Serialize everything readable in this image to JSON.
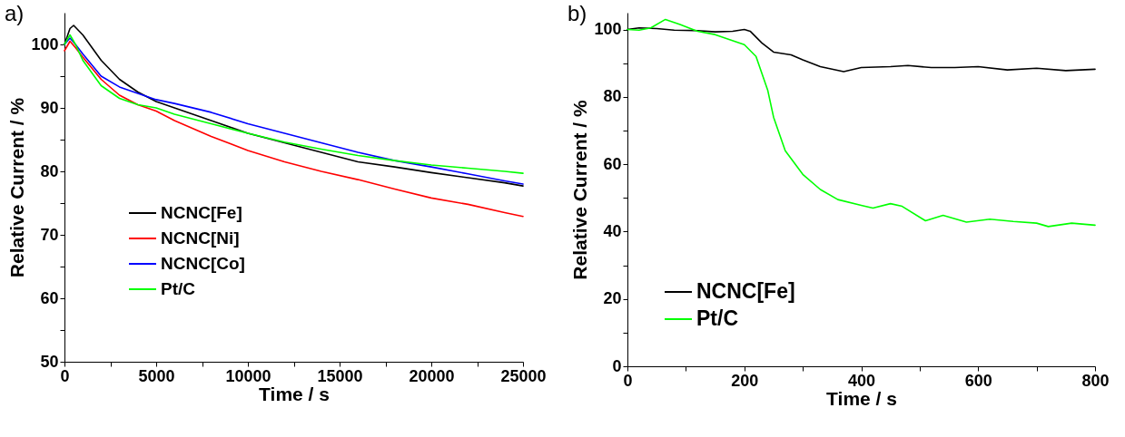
{
  "chart_data": [
    {
      "type": "line",
      "title": "a)",
      "xlabel": "Time / s",
      "ylabel": "Relative Current / %",
      "xlim": [
        0,
        25000
      ],
      "ylim": [
        50,
        105
      ],
      "xticks": [
        0,
        {
          "value": 2500,
          "label": null
        },
        5000,
        {
          "value": 7500,
          "label": null
        },
        10000,
        {
          "value": 12500,
          "label": null
        },
        15000,
        {
          "value": 17500,
          "label": null
        },
        20000,
        {
          "value": 22500,
          "label": null
        },
        25000
      ],
      "yticks": [
        50,
        {
          "value": 55,
          "label": null
        },
        60,
        {
          "value": 65,
          "label": null
        },
        70,
        {
          "value": 75,
          "label": null
        },
        80,
        {
          "value": 85,
          "label": null
        },
        90,
        {
          "value": 95,
          "label": null
        },
        100
      ],
      "legend": "bottom left",
      "grid": false,
      "line_style": "solid",
      "series": [
        {
          "name": "NCNC[Fe]",
          "color": "#000000",
          "x": [
            0,
            300,
            500,
            1000,
            2000,
            3000,
            4000,
            5000,
            6000,
            7000,
            8000,
            10000,
            12000,
            14000,
            16000,
            18000,
            20000,
            22000,
            24000,
            25000
          ],
          "values": [
            100,
            102.5,
            103,
            101.5,
            97.5,
            94.5,
            92.5,
            91,
            90,
            89,
            88,
            86,
            84.5,
            83,
            81.5,
            80.7,
            79.8,
            79,
            78.2,
            77.7
          ]
        },
        {
          "name": "NCNC[Ni]",
          "color": "#ff0000",
          "x": [
            0,
            300,
            600,
            1000,
            2000,
            3000,
            4000,
            5000,
            6000,
            8000,
            10000,
            12000,
            14000,
            16000,
            18000,
            20000,
            22000,
            24000,
            25000
          ],
          "values": [
            99,
            100.5,
            99.5,
            98,
            94.5,
            92,
            90.5,
            89.5,
            88,
            85.5,
            83.3,
            81.5,
            80,
            78.7,
            77.2,
            75.8,
            74.8,
            73.5,
            72.9
          ]
        },
        {
          "name": "NCNC[Co]",
          "color": "#0000ff",
          "x": [
            0,
            300,
            600,
            1000,
            2000,
            3000,
            4000,
            5000,
            6000,
            8000,
            10000,
            12000,
            14000,
            16000,
            18000,
            20000,
            22000,
            24000,
            25000
          ],
          "values": [
            100,
            101,
            100,
            98.5,
            95,
            93.3,
            92.3,
            91.3,
            90.7,
            89.3,
            87.5,
            86,
            84.5,
            83,
            81.7,
            80.7,
            79.6,
            78.5,
            78
          ]
        },
        {
          "name": "Pt/C",
          "color": "#00ff00",
          "x": [
            0,
            300,
            600,
            1000,
            2000,
            3000,
            4000,
            5000,
            6000,
            8000,
            10000,
            12000,
            14000,
            16000,
            18000,
            20000,
            22000,
            24000,
            25000
          ],
          "values": [
            100,
            101.5,
            100,
            97.5,
            93.5,
            91.5,
            90.5,
            90,
            89,
            87.5,
            86,
            84.6,
            83.5,
            82.5,
            81.7,
            81,
            80.5,
            80,
            79.7
          ]
        }
      ]
    },
    {
      "type": "line",
      "title": "b)",
      "xlabel": "Time / s",
      "ylabel": "Relative Current / %",
      "xlim": [
        0,
        800
      ],
      "ylim": [
        0,
        105
      ],
      "xticks": [
        0,
        {
          "value": 100,
          "label": null
        },
        200,
        {
          "value": 300,
          "label": null
        },
        400,
        {
          "value": 500,
          "label": null
        },
        600,
        {
          "value": 700,
          "label": null
        },
        800
      ],
      "yticks": [
        0,
        {
          "value": 10,
          "label": null
        },
        20,
        {
          "value": 30,
          "label": null
        },
        40,
        {
          "value": 50,
          "label": null
        },
        60,
        {
          "value": 70,
          "label": null
        },
        80,
        {
          "value": 90,
          "label": null
        },
        100
      ],
      "legend": "bottom left",
      "grid": false,
      "line_style": "solid",
      "series": [
        {
          "name": "NCNC[Fe]",
          "color": "#000000",
          "x": [
            0,
            20,
            50,
            80,
            120,
            150,
            180,
            200,
            210,
            230,
            250,
            280,
            300,
            330,
            370,
            400,
            450,
            480,
            520,
            560,
            600,
            650,
            700,
            750,
            800
          ],
          "values": [
            100,
            100.5,
            100.3,
            99.8,
            99.7,
            99.3,
            99.5,
            100,
            99.5,
            96,
            93.3,
            92.5,
            91,
            89,
            87.5,
            88.7,
            89,
            89.3,
            88.7,
            88.7,
            89,
            88,
            88.5,
            87.8,
            88.2
          ]
        },
        {
          "name": "Pt/C",
          "color": "#00ff00",
          "x": [
            0,
            20,
            40,
            65,
            90,
            120,
            150,
            200,
            220,
            240,
            250,
            270,
            300,
            330,
            360,
            400,
            420,
            450,
            470,
            510,
            540,
            580,
            620,
            660,
            700,
            720,
            760,
            800
          ],
          "values": [
            100,
            99.8,
            100.5,
            103,
            101.5,
            99.5,
            98.5,
            95.5,
            92,
            82,
            74,
            64,
            57,
            52.5,
            49.5,
            47.8,
            47,
            48.3,
            47.5,
            43.2,
            44.8,
            42.8,
            43.7,
            43,
            42.5,
            41.5,
            42.5,
            41.9
          ]
        }
      ]
    }
  ]
}
